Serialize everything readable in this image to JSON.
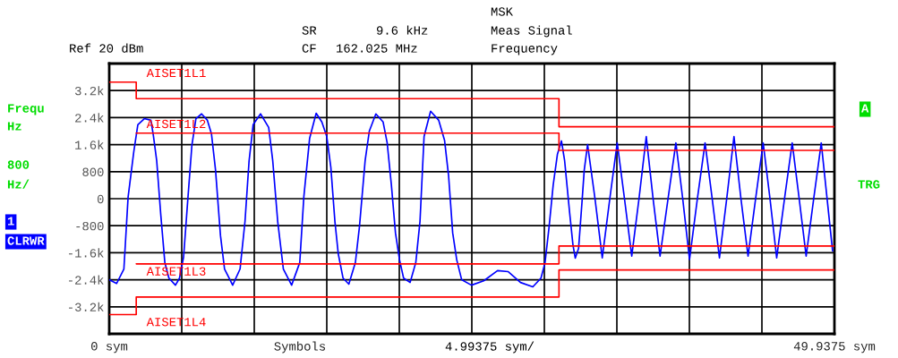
{
  "chart_data": {
    "type": "line",
    "xlabel": "Symbols",
    "xlim": [
      0,
      49.9375
    ],
    "xticks": [
      {
        "value": 0,
        "label": "0 sym"
      },
      {
        "value": 4.99375,
        "label": null
      },
      {
        "value": 9.9875,
        "label": null
      },
      {
        "value": 14.98125,
        "label": null
      },
      {
        "value": 19.975,
        "label": null
      },
      {
        "value": 24.96875,
        "label": null
      },
      {
        "value": 29.9625,
        "label": null
      },
      {
        "value": 34.95625,
        "label": null
      },
      {
        "value": 39.95,
        "label": null
      },
      {
        "value": 44.94375,
        "label": null
      },
      {
        "value": 49.9375,
        "label": "49.9375 sym"
      }
    ],
    "ylim": [
      -4000,
      4000
    ],
    "yticks": [
      {
        "value": -4000,
        "label": null
      },
      {
        "value": -3200,
        "label": "-3.2k"
      },
      {
        "value": -2400,
        "label": "-2.4k"
      },
      {
        "value": -1600,
        "label": "-1.6k"
      },
      {
        "value": -800,
        "label": "-800"
      },
      0,
      800,
      {
        "value": 1600,
        "label": "1.6k"
      },
      {
        "value": 2400,
        "label": "2.4k"
      },
      {
        "value": 3200,
        "label": "3.2k"
      },
      {
        "value": 4000,
        "label": null
      }
    ],
    "grid": true,
    "series": [
      {
        "color": "#0000ff",
        "x": [
          0,
          0.51,
          1.01,
          1.3,
          1.69,
          1.97,
          2.42,
          2.87,
          3.04,
          3.27,
          3.55,
          3.83,
          4.11,
          4.56,
          4.84,
          5.12,
          5.41,
          5.69,
          5.97,
          6.36,
          6.76,
          7.04,
          7.32,
          7.66,
          7.94,
          8.5,
          9.01,
          9.35,
          9.63,
          9.91,
          10.42,
          10.98,
          11.26,
          11.6,
          11.99,
          12.56,
          13.12,
          13.4,
          13.8,
          14.25,
          14.64,
          14.98,
          15.26,
          15.54,
          15.77,
          16.1,
          16.5,
          16.95,
          17.23,
          17.62,
          17.91,
          18.36,
          18.86,
          19.14,
          19.43,
          19.71,
          19.99,
          20.27,
          20.72,
          21.11,
          21.4,
          21.68,
          22.13,
          22.69,
          23.09,
          23.37,
          23.65,
          23.93,
          24.27,
          24.94,
          25.79,
          26.74,
          27.48,
          28.32,
          29.17,
          29.73,
          30.01,
          30.29,
          30.57,
          30.86,
          31.14,
          31.36,
          31.7,
          31.93,
          32.09,
          32.32,
          32.55,
          32.71,
          32.94,
          33.45,
          33.95,
          34.47,
          34.98,
          35.48,
          35.98,
          36.48,
          36.98,
          37.45,
          37.93,
          38.48,
          39.02,
          39.49,
          39.96,
          40.5,
          41.03,
          41.52,
          42.02,
          42.52,
          43.02,
          43.5,
          43.99,
          44.51,
          45.03,
          45.5,
          45.96,
          46.5,
          47.03,
          47.51,
          47.99,
          48.51,
          49.03,
          49.81
        ],
        "values": [
          -2400,
          -2510,
          -2080,
          50,
          1390,
          2190,
          2370,
          2320,
          1870,
          1120,
          -480,
          -1890,
          -2350,
          -2560,
          -2350,
          -1730,
          -30,
          1570,
          2370,
          2510,
          2320,
          1920,
          850,
          -1090,
          -2080,
          -2560,
          -2080,
          -670,
          1120,
          2190,
          2510,
          2110,
          1120,
          -670,
          -2080,
          -2560,
          -1890,
          50,
          1790,
          2530,
          2270,
          1840,
          930,
          -670,
          -1630,
          -2350,
          -2530,
          -1890,
          -830,
          1120,
          2000,
          2510,
          2270,
          1650,
          400,
          -1010,
          -1810,
          -2350,
          -2480,
          -1890,
          -670,
          1840,
          2590,
          2320,
          1730,
          670,
          -1010,
          -1810,
          -2400,
          -2560,
          -2430,
          -2130,
          -2160,
          -2480,
          -2610,
          -2350,
          -1890,
          -830,
          400,
          1310,
          1710,
          1120,
          -400,
          -1360,
          -1760,
          -1470,
          -130,
          850,
          1600,
          0,
          -1750,
          0,
          1650,
          0,
          -1700,
          0,
          1840,
          0,
          -1700,
          0,
          1650,
          0,
          -1800,
          0,
          1650,
          0,
          -1750,
          0,
          1840,
          0,
          -1700,
          0,
          1650,
          0,
          -1750,
          0,
          1650,
          0,
          -1700,
          0,
          1650,
          -1550
        ]
      },
      {
        "type": "step",
        "name": "AISET1L1",
        "color": "#ff0000",
        "x": [
          0,
          1.86,
          30.97,
          49.9375
        ],
        "values": [
          3450,
          2960,
          2130,
          2130
        ]
      },
      {
        "type": "step",
        "name": "AISET1L2",
        "color": "#ff0000",
        "x": [
          1.86,
          30.97,
          49.9375
        ],
        "values": [
          1940,
          1430,
          1430
        ]
      },
      {
        "type": "step",
        "name": "AISET1L3",
        "color": "#ff0000",
        "x": [
          1.86,
          30.97,
          49.9375
        ],
        "values": [
          -1930,
          -1400,
          -1400
        ]
      },
      {
        "type": "step",
        "name": "AISET1L4",
        "color": "#ff0000",
        "x": [
          0,
          1.86,
          30.97,
          49.9375
        ],
        "values": [
          -3430,
          -2910,
          -2110,
          -2110
        ]
      }
    ],
    "annotations": [
      "Ref 20 dBm",
      "SR",
      "9.6 kHz",
      "CF",
      "162.025 MHz",
      "MSK",
      "Meas Signal",
      "Frequency",
      "Frequ",
      "Hz",
      "800",
      "Hz/",
      "1",
      "CLRWR",
      "A",
      "TRG",
      "4.99375 sym/"
    ]
  }
}
